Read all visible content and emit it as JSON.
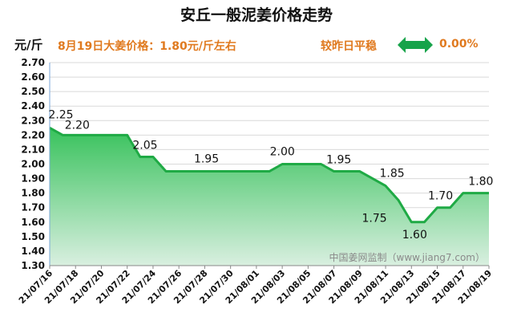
{
  "header": {
    "title": "安丘一般泥姜价格走势",
    "unit": "元/斤",
    "price_note": "8月19日大姜价格：1.80元/斤左右",
    "compare": "较昨日平稳",
    "change": "0.00%",
    "arrow_icon": "double-arrow-icon",
    "arrow_color": "#17a34a",
    "accent_color": "#e07a1f"
  },
  "watermark": "中国姜网监制（www.jiang7.com）",
  "chart_data": {
    "type": "area",
    "title": "安丘一般泥姜价格走势",
    "ylabel": "元/斤",
    "xlabel": "",
    "ylim": [
      1.3,
      2.7
    ],
    "yticks": [
      "1.30",
      "1.40",
      "1.50",
      "1.60",
      "1.70",
      "1.80",
      "1.90",
      "2.00",
      "2.10",
      "2.20",
      "2.30",
      "2.40",
      "2.50",
      "2.60",
      "2.70"
    ],
    "xticks": [
      "21/07/16",
      "21/07/18",
      "21/07/20",
      "21/07/22",
      "21/07/24",
      "21/07/26",
      "21/07/28",
      "21/07/30",
      "21/08/01",
      "21/08/03",
      "21/08/05",
      "21/08/07",
      "21/08/09",
      "21/08/11",
      "21/08/13",
      "21/08/15",
      "21/08/17",
      "21/08/19"
    ],
    "grid": true,
    "line_color": "#1faa45",
    "fill_color_top": "#38c25c",
    "fill_color_bottom": "#d9efe0",
    "series": [
      {
        "x": [
          "21/07/16",
          "21/07/17",
          "21/07/18",
          "21/07/19",
          "21/07/20",
          "21/07/21",
          "21/07/22",
          "21/07/23",
          "21/07/24",
          "21/07/25",
          "21/07/26",
          "21/07/27",
          "21/07/28",
          "21/07/29",
          "21/07/30",
          "21/07/31",
          "21/08/01",
          "21/08/02",
          "21/08/03",
          "21/08/04",
          "21/08/05",
          "21/08/06",
          "21/08/07",
          "21/08/08",
          "21/08/09",
          "21/08/10",
          "21/08/11",
          "21/08/12",
          "21/08/13",
          "21/08/14",
          "21/08/15",
          "21/08/16",
          "21/08/17",
          "21/08/18",
          "21/08/19"
        ],
        "values": [
          2.25,
          2.2,
          2.2,
          2.2,
          2.2,
          2.2,
          2.2,
          2.05,
          2.05,
          1.95,
          1.95,
          1.95,
          1.95,
          1.95,
          1.95,
          1.95,
          1.95,
          1.95,
          2.0,
          2.0,
          2.0,
          2.0,
          1.95,
          1.95,
          1.95,
          1.9,
          1.85,
          1.75,
          1.6,
          1.6,
          1.7,
          1.7,
          1.8,
          1.8,
          1.8
        ]
      }
    ],
    "data_labels": [
      {
        "x": "21/07/16",
        "value": "2.25"
      },
      {
        "x": "21/07/19",
        "value": "2.20"
      },
      {
        "x": "21/07/24",
        "value": "2.05"
      },
      {
        "x": "21/07/29",
        "value": "1.95"
      },
      {
        "x": "21/08/04",
        "value": "2.00"
      },
      {
        "x": "21/08/08",
        "value": "1.95"
      },
      {
        "x": "21/08/11",
        "value": "1.85"
      },
      {
        "x": "21/08/11",
        "value": "1.75"
      },
      {
        "x": "21/08/13",
        "value": "1.60"
      },
      {
        "x": "21/08/15",
        "value": "1.70"
      },
      {
        "x": "21/08/18",
        "value": "1.80"
      }
    ]
  }
}
